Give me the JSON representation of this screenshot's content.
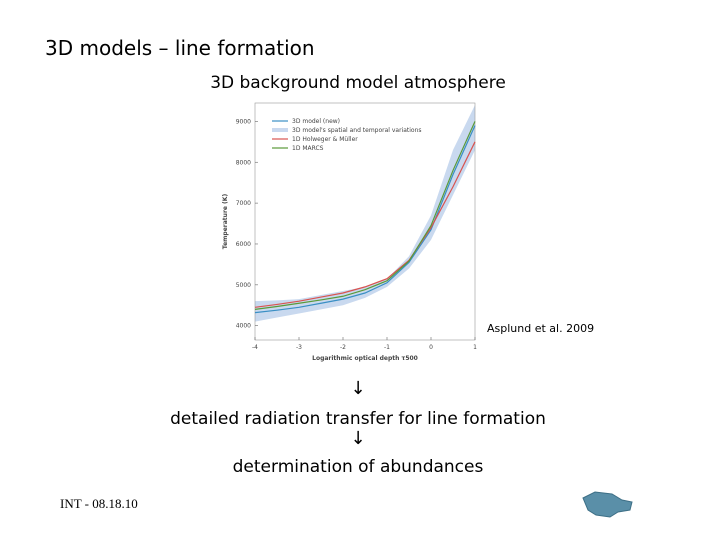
{
  "slide": {
    "title": "3D models – line formation",
    "subtitle": "3D background model atmosphere",
    "credit": "Asplund et al. 2009",
    "arrow_1": "↓",
    "step_1": "detailed radiation transfer for line formation",
    "arrow_2": "↓",
    "step_2": "determination of abundances",
    "footer": "INT - 08.18.10"
  },
  "chart_data": {
    "type": "line",
    "x_label": "Logarithmic optical depth τ500",
    "y_label": "Temperature (K)",
    "x": [
      -4,
      -3.5,
      -3,
      -2.5,
      -2,
      -1.5,
      -1,
      -0.5,
      0,
      0.5,
      1
    ],
    "xlim": [
      -4,
      1
    ],
    "xticks": [
      -4,
      -3,
      -2,
      -1,
      0,
      1
    ],
    "ylim": [
      3650,
      9450
    ],
    "yticks": [
      4000,
      5000,
      6000,
      7000,
      8000,
      9000
    ],
    "series": [
      {
        "name": "3D model (new)",
        "color": "#3a8fc4",
        "values": [
          4320,
          4380,
          4450,
          4550,
          4650,
          4800,
          5050,
          5550,
          6350,
          7700,
          8900
        ]
      },
      {
        "name": "1D Holweger & Müller",
        "color": "#d9534f",
        "values": [
          4450,
          4520,
          4600,
          4700,
          4800,
          4950,
          5150,
          5600,
          6400,
          7400,
          8500
        ]
      },
      {
        "name": "1D MARCS",
        "color": "#5a9a3a",
        "values": [
          4400,
          4470,
          4550,
          4630,
          4720,
          4880,
          5100,
          5580,
          6450,
          7800,
          9000
        ]
      }
    ],
    "band": {
      "name": "3D model's spatial and temporal variations",
      "color": "#c9d9ef",
      "lower": [
        4100,
        4200,
        4300,
        4400,
        4500,
        4680,
        4950,
        5400,
        6100,
        7200,
        8300
      ],
      "upper": [
        4600,
        4620,
        4650,
        4750,
        4850,
        4950,
        5150,
        5700,
        6700,
        8300,
        9400
      ]
    }
  }
}
